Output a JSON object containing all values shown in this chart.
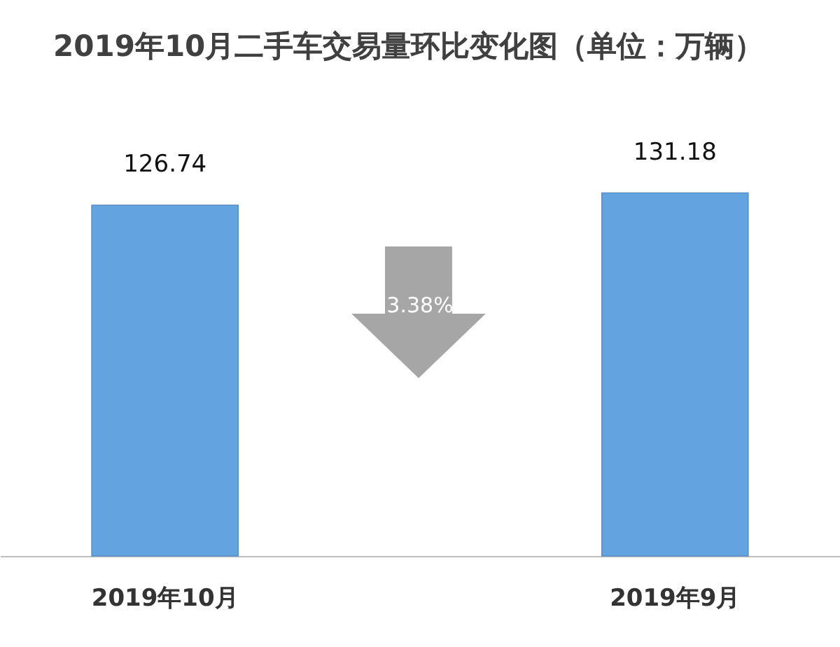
{
  "chart_data": {
    "type": "bar",
    "title": "2019年10月二手车交易量环比变化图（单位：万辆）",
    "categories": [
      "2019年10月",
      "2019年9月"
    ],
    "values": [
      126.74,
      131.18
    ],
    "color": "#62a3e0",
    "data_labels": true,
    "annotations": [
      "3.38%"
    ]
  }
}
